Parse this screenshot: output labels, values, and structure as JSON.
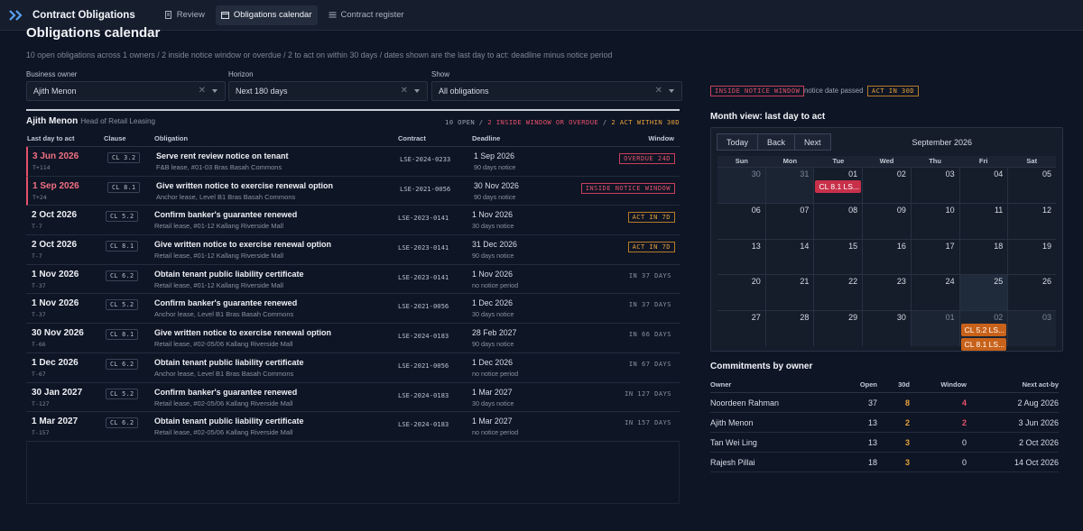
{
  "app": {
    "title": "Contract Obligations"
  },
  "nav": [
    {
      "label": "Review",
      "icon": "document-icon",
      "active": false
    },
    {
      "label": "Obligations calendar",
      "icon": "calendar-icon",
      "active": true
    },
    {
      "label": "Contract register",
      "icon": "list-icon",
      "active": false
    }
  ],
  "page": {
    "title": "Obligations calendar",
    "subtitle": "10 open obligations across 1 owners / 2 inside notice window or overdue / 2 to act on within 30 days / dates shown are the last day to act: deadline minus notice period"
  },
  "filters": {
    "owner": {
      "label": "Business owner",
      "value": "Ajith Menon"
    },
    "horizon": {
      "label": "Horizon",
      "value": "Next 180 days"
    },
    "show": {
      "label": "Show",
      "value": "All obligations"
    }
  },
  "owner": {
    "name": "Ajith Menon",
    "role": "Head of Retail Leasing"
  },
  "summary": {
    "open": "10 OPEN",
    "sep1": " / ",
    "window": "2 INSIDE WINDOW OR OVERDUE",
    "sep2": " / ",
    "act": "2 ACT WITHIN 30D"
  },
  "table": {
    "headers": {
      "date": "Last day to act",
      "clause": "Clause",
      "obligation": "Obligation",
      "contract": "Contract",
      "deadline": "Deadline",
      "window": "Window"
    },
    "rows": [
      {
        "date": "3 Jun 2026",
        "t": "T+114",
        "clause": "CL 3.2",
        "title": "Serve rent review notice on tenant",
        "sub": "F&B lease, #01-03 Bras Basah Commons",
        "contract": "LSE-2024-0233",
        "deadline": "1 Sep 2026",
        "notice": "90 days notice",
        "window": "OVERDUE 24D",
        "status": "overdue"
      },
      {
        "date": "1 Sep 2026",
        "t": "T+24",
        "clause": "CL 8.1",
        "title": "Give written notice to exercise renewal option",
        "sub": "Anchor lease, Level B1 Bras Basah Commons",
        "contract": "LSE-2021-0056",
        "deadline": "30 Nov 2026",
        "notice": "90 days notice",
        "window": "INSIDE NOTICE WINDOW",
        "status": "window"
      },
      {
        "date": "2 Oct 2026",
        "t": "T-7",
        "clause": "CL 5.2",
        "title": "Confirm banker's guarantee renewed",
        "sub": "Retail lease, #01-12 Kallang Riverside Mall",
        "contract": "LSE-2023-0141",
        "deadline": "1 Nov 2026",
        "notice": "30 days notice",
        "window": "ACT IN 7D",
        "status": "act"
      },
      {
        "date": "2 Oct 2026",
        "t": "T-7",
        "clause": "CL 8.1",
        "title": "Give written notice to exercise renewal option",
        "sub": "Retail lease, #01-12 Kallang Riverside Mall",
        "contract": "LSE-2023-0141",
        "deadline": "31 Dec 2026",
        "notice": "90 days notice",
        "window": "ACT IN 7D",
        "status": "act"
      },
      {
        "date": "1 Nov 2026",
        "t": "T-37",
        "clause": "CL 6.2",
        "title": "Obtain tenant public liability certificate",
        "sub": "Retail lease, #01-12 Kallang Riverside Mall",
        "contract": "LSE-2023-0141",
        "deadline": "1 Nov 2026",
        "notice": "no notice period",
        "window": "IN 37 DAYS",
        "status": "plain"
      },
      {
        "date": "1 Nov 2026",
        "t": "T-37",
        "clause": "CL 5.2",
        "title": "Confirm banker's guarantee renewed",
        "sub": "Anchor lease, Level B1 Bras Basah Commons",
        "contract": "LSE-2021-0056",
        "deadline": "1 Dec 2026",
        "notice": "30 days notice",
        "window": "IN 37 DAYS",
        "status": "plain"
      },
      {
        "date": "30 Nov 2026",
        "t": "T-66",
        "clause": "CL 8.1",
        "title": "Give written notice to exercise renewal option",
        "sub": "Retail lease, #02-05/06 Kallang Riverside Mall",
        "contract": "LSE-2024-0183",
        "deadline": "28 Feb 2027",
        "notice": "90 days notice",
        "window": "IN 66 DAYS",
        "status": "plain"
      },
      {
        "date": "1 Dec 2026",
        "t": "T-67",
        "clause": "CL 6.2",
        "title": "Obtain tenant public liability certificate",
        "sub": "Anchor lease, Level B1 Bras Basah Commons",
        "contract": "LSE-2021-0056",
        "deadline": "1 Dec 2026",
        "notice": "no notice period",
        "window": "IN 67 DAYS",
        "status": "plain"
      },
      {
        "date": "30 Jan 2027",
        "t": "T-127",
        "clause": "CL 5.2",
        "title": "Confirm banker's guarantee renewed",
        "sub": "Retail lease, #02-05/06 Kallang Riverside Mall",
        "contract": "LSE-2024-0183",
        "deadline": "1 Mar 2027",
        "notice": "30 days notice",
        "window": "IN 127 DAYS",
        "status": "plain"
      },
      {
        "date": "1 Mar 2027",
        "t": "T-157",
        "clause": "CL 6.2",
        "title": "Obtain tenant public liability certificate",
        "sub": "Retail lease, #02-05/06 Kallang Riverside Mall",
        "contract": "LSE-2024-0183",
        "deadline": "1 Mar 2027",
        "notice": "no notice period",
        "window": "IN 157 DAYS",
        "status": "plain"
      }
    ]
  },
  "legend": {
    "window": "INSIDE NOTICE WINDOW",
    "note": "notice date passed",
    "act": "ACT IN 30D"
  },
  "calendar": {
    "title": "Month view: last day to act",
    "buttons": {
      "today": "Today",
      "back": "Back",
      "next": "Next"
    },
    "month": "September 2026",
    "dows": [
      "Sun",
      "Mon",
      "Tue",
      "Wed",
      "Thu",
      "Fri",
      "Sat"
    ],
    "weeks": [
      [
        {
          "n": "30",
          "off": true
        },
        {
          "n": "31",
          "off": true
        },
        {
          "n": "01"
        },
        {
          "n": "02"
        },
        {
          "n": "03"
        },
        {
          "n": "04"
        },
        {
          "n": "05"
        }
      ],
      [
        {
          "n": "06"
        },
        {
          "n": "07"
        },
        {
          "n": "08"
        },
        {
          "n": "09"
        },
        {
          "n": "10"
        },
        {
          "n": "11"
        },
        {
          "n": "12"
        }
      ],
      [
        {
          "n": "13"
        },
        {
          "n": "14"
        },
        {
          "n": "15"
        },
        {
          "n": "16"
        },
        {
          "n": "17"
        },
        {
          "n": "18"
        },
        {
          "n": "19"
        }
      ],
      [
        {
          "n": "20"
        },
        {
          "n": "21"
        },
        {
          "n": "22"
        },
        {
          "n": "23"
        },
        {
          "n": "24"
        },
        {
          "n": "25",
          "today": true
        },
        {
          "n": "26"
        }
      ],
      [
        {
          "n": "27"
        },
        {
          "n": "28"
        },
        {
          "n": "29"
        },
        {
          "n": "30"
        },
        {
          "n": "01",
          "off": true
        },
        {
          "n": "02",
          "off": true
        },
        {
          "n": "03",
          "off": true
        }
      ]
    ],
    "events": [
      {
        "week": 0,
        "day": 2,
        "label": "CL 8.1 LS...",
        "color": "red",
        "slot": 0
      },
      {
        "week": 4,
        "day": 5,
        "label": "CL 5.2 LS...",
        "color": "orange",
        "slot": 0
      },
      {
        "week": 4,
        "day": 5,
        "label": "CL 8.1 LS...",
        "color": "orange",
        "slot": 1
      }
    ]
  },
  "commitments": {
    "title": "Commitments by owner",
    "headers": {
      "owner": "Owner",
      "open": "Open",
      "d30": "30d",
      "window": "Window",
      "next": "Next act-by"
    },
    "rows": [
      {
        "owner": "Noordeen Rahman",
        "open": "37",
        "d30": "8",
        "window": "4",
        "next": "2 Aug 2026",
        "hot": true
      },
      {
        "owner": "Ajith Menon",
        "open": "13",
        "d30": "2",
        "window": "2",
        "next": "3 Jun 2026",
        "hot": true
      },
      {
        "owner": "Tan Wei Ling",
        "open": "13",
        "d30": "3",
        "window": "0",
        "next": "2 Oct 2026",
        "hot": false
      },
      {
        "owner": "Rajesh Pillai",
        "open": "18",
        "d30": "3",
        "window": "0",
        "next": "14 Oct 2026",
        "hot": false
      }
    ]
  }
}
